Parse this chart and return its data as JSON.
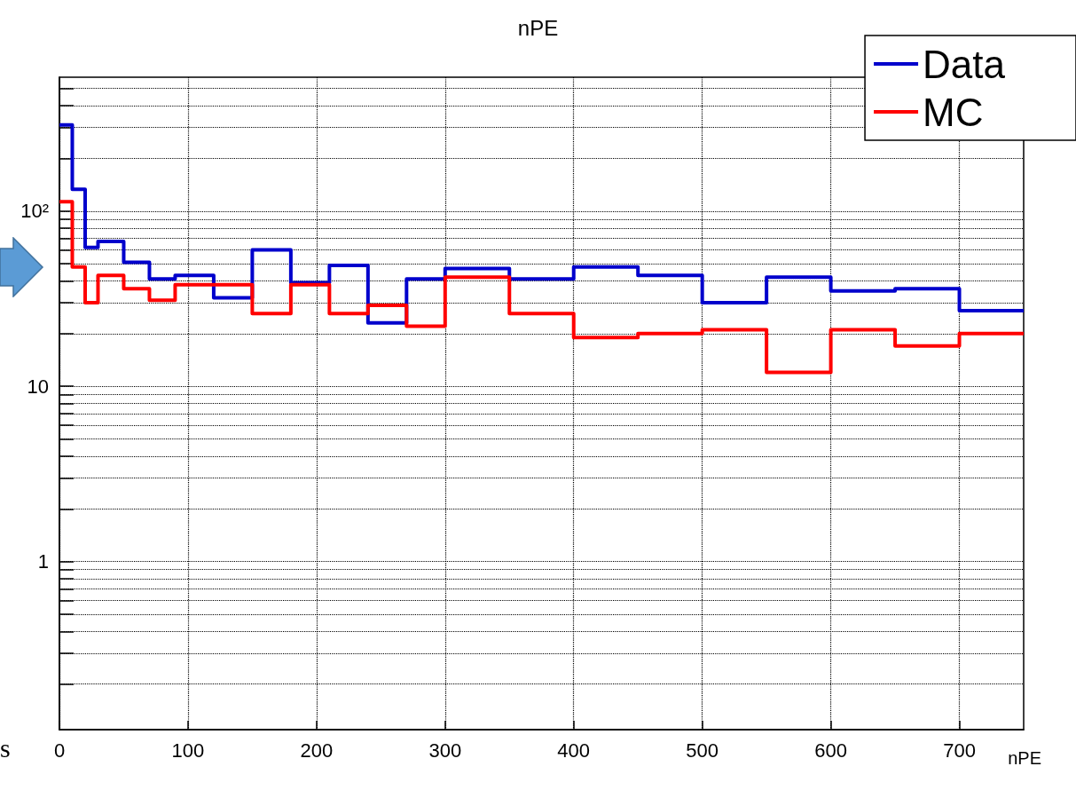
{
  "chart_data": {
    "type": "histogram",
    "title": "nPE",
    "xlabel": "nPE",
    "bins": [
      0,
      10,
      20,
      30,
      50,
      70,
      90,
      120,
      150,
      180,
      210,
      240,
      270,
      300,
      350,
      400,
      450,
      500,
      550,
      600,
      650,
      700,
      750
    ],
    "series": [
      {
        "name": "Data",
        "color": "#0000cc",
        "values": [
          310,
          133,
          62,
          67,
          51,
          41,
          43,
          32,
          60,
          39,
          49,
          23,
          41,
          47,
          41,
          48,
          43,
          30,
          42,
          35,
          36,
          27
        ]
      },
      {
        "name": "MC",
        "color": "#ff0000",
        "values": [
          113,
          48,
          30,
          43,
          36,
          31,
          38,
          38,
          26,
          38,
          26,
          29,
          22,
          42,
          26,
          19,
          20,
          21,
          12,
          21,
          17,
          20
        ]
      }
    ],
    "log": "y",
    "xlim": [
      0,
      750
    ],
    "xticks": [
      0,
      100,
      200,
      300,
      400,
      500,
      600,
      700
    ],
    "ylim": [
      0.11,
      580
    ],
    "yticks": [
      {
        "value": 0.2,
        "label": null
      },
      {
        "value": 0.3,
        "label": null
      },
      {
        "value": 0.4,
        "label": null
      },
      {
        "value": 0.5,
        "label": null
      },
      {
        "value": 0.6,
        "label": null
      },
      {
        "value": 0.7,
        "label": null
      },
      {
        "value": 0.8,
        "label": null
      },
      {
        "value": 0.9,
        "label": null
      },
      1,
      {
        "value": 2,
        "label": null
      },
      {
        "value": 3,
        "label": null
      },
      {
        "value": 4,
        "label": null
      },
      {
        "value": 5,
        "label": null
      },
      {
        "value": 6,
        "label": null
      },
      {
        "value": 7,
        "label": null
      },
      {
        "value": 8,
        "label": null
      },
      {
        "value": 9,
        "label": null
      },
      10,
      {
        "value": 20,
        "label": null
      },
      {
        "value": 30,
        "label": null
      },
      {
        "value": 40,
        "label": null
      },
      {
        "value": 50,
        "label": null
      },
      {
        "value": 60,
        "label": null
      },
      {
        "value": 70,
        "label": null
      },
      {
        "value": 80,
        "label": null
      },
      {
        "value": 90,
        "label": null
      },
      {
        "value": 100,
        "label": "10²"
      },
      {
        "value": 200,
        "label": null
      },
      {
        "value": 300,
        "label": null
      },
      {
        "value": 400,
        "label": null
      },
      {
        "value": 500,
        "label": null
      }
    ],
    "grid": true,
    "legend": "top right",
    "line_style": "solid",
    "annotations": [
      "s"
    ]
  }
}
